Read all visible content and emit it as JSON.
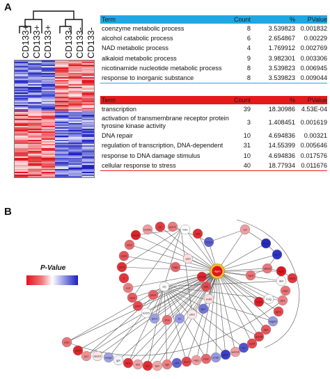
{
  "panel_a_label": "A",
  "panel_b_label": "B",
  "heatmap": {
    "columns": [
      "CD133+",
      "CD133+",
      "CD133+",
      "CD133-",
      "CD133-",
      "CD133-"
    ],
    "colors": {
      "high": "#e0131b",
      "low": "#1a1fc0",
      "mid": "#ffffff"
    }
  },
  "table_up": {
    "header_color": "#1ea8e3",
    "headers": {
      "term": "Term",
      "count": "Count",
      "pct": "%",
      "pval": "PValue"
    },
    "rows": [
      {
        "term": "coenzyme metabolic process",
        "count": "8",
        "pct": "3.539823",
        "pval": "0.001832"
      },
      {
        "term": "alcohol catabolic process",
        "count": "6",
        "pct": "2.654867",
        "pval": "0.00229"
      },
      {
        "term": "NAD metabolic process",
        "count": "4",
        "pct": "1.769912",
        "pval": "0.002769"
      },
      {
        "term": "alkaloid metabolic process",
        "count": "9",
        "pct": "3.982301",
        "pval": "0.003306"
      },
      {
        "term": "nicotinamide nucleotide metabolic process",
        "count": "8",
        "pct": "3.539823",
        "pval": "0.006945"
      },
      {
        "term": "response to inorganic substance",
        "count": "8",
        "pct": "3.539823",
        "pval": "0.009044"
      }
    ]
  },
  "table_down": {
    "header_color": "#e41a1a",
    "headers": {
      "term": "Term",
      "count": "Count",
      "pct": "%",
      "pval": "PValue"
    },
    "rows": [
      {
        "term": "transcription",
        "count": "39",
        "pct": "18.30986",
        "pval": "4.53E-04"
      },
      {
        "term": "activation of transmembrane receptor protein tyrosine kinase activity",
        "count": "3",
        "pct": "1.408451",
        "pval": "0.001619"
      },
      {
        "term": "DNA repair",
        "count": "10",
        "pct": "4.694836",
        "pval": "0.00321"
      },
      {
        "term": "regulation of transcription, DNA-dependent",
        "count": "31",
        "pct": "14.55399",
        "pval": "0.005646"
      },
      {
        "term": "response to DNA damage stimulus",
        "count": "10",
        "pct": "4.694836",
        "pval": "0.017576"
      },
      {
        "term": "cellular response to stress",
        "count": "40",
        "pct": "18.77934",
        "pval": "0.011676"
      }
    ]
  },
  "network": {
    "legend_title": "P-Value",
    "hub_label": "rbpm",
    "node_labels": [
      "lonp2",
      "cendo",
      "pp",
      "ppm1",
      "tnks",
      "cd2",
      "fsnpa",
      "usp1",
      "ctsrh",
      "ntrol",
      "b",
      "zc3",
      "rap3",
      "pik3",
      "tcd15",
      "lpf11",
      "zfos",
      "srs",
      "pik3",
      "gen",
      "sod3",
      "eif2",
      "emb5",
      "arrb",
      "napp",
      "zrp",
      "pbx4",
      "psip",
      "cbx1",
      "pp1",
      "abcb2",
      "aspg2",
      "gpr",
      "atp1",
      "ebs",
      "xk1",
      "tpm",
      "sgk",
      "elf4",
      "arp3",
      "mtp1",
      "rhox",
      "e7ab",
      "gbt1",
      "wdr14",
      "hpr",
      "u2af",
      "arsn5",
      "dpd",
      "tagpts",
      "gpr1",
      "ulp1",
      "vbp1",
      "dk4",
      "ccl",
      "mcp1",
      "dds1",
      "ubss2",
      "fbpk",
      "aspd",
      "rap3",
      "ndc8",
      "tcdg"
    ]
  }
}
